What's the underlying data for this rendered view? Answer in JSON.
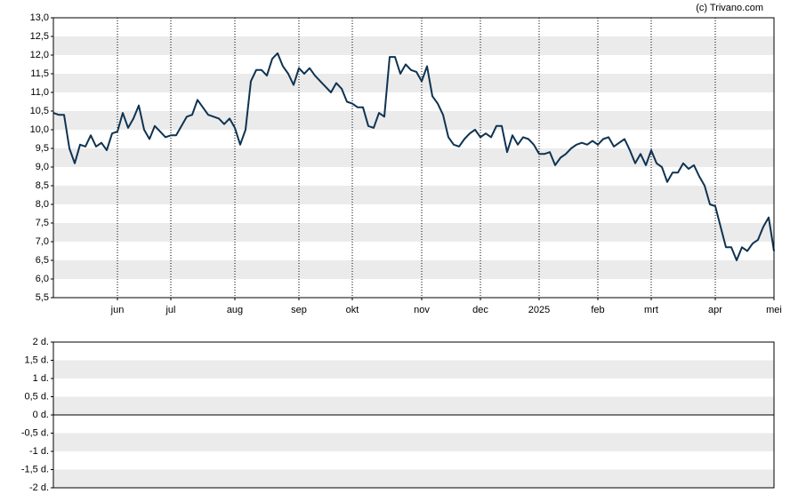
{
  "source": "(c) Trivano.com",
  "chart_data": [
    {
      "type": "line",
      "categories": [
        null,
        null,
        null,
        null,
        null,
        null,
        null,
        null,
        null,
        null,
        null,
        null,
        "jun",
        null,
        null,
        null,
        null,
        null,
        null,
        null,
        null,
        null,
        "jul",
        null,
        null,
        null,
        null,
        null,
        null,
        null,
        null,
        null,
        null,
        null,
        "aug",
        null,
        null,
        null,
        null,
        null,
        null,
        null,
        null,
        null,
        null,
        null,
        "sep",
        null,
        null,
        null,
        null,
        null,
        null,
        null,
        null,
        null,
        "okt",
        null,
        null,
        null,
        null,
        null,
        null,
        null,
        null,
        null,
        null,
        null,
        null,
        "nov",
        null,
        null,
        null,
        null,
        null,
        null,
        null,
        null,
        null,
        null,
        "dec",
        null,
        null,
        null,
        null,
        null,
        null,
        null,
        null,
        null,
        null,
        "2025",
        null,
        null,
        null,
        null,
        null,
        null,
        null,
        null,
        null,
        null,
        "feb",
        null,
        null,
        null,
        null,
        null,
        null,
        null,
        null,
        null,
        "mrt",
        null,
        null,
        null,
        null,
        null,
        null,
        null,
        null,
        null,
        null,
        null,
        "apr",
        null,
        null,
        null,
        null,
        null,
        null,
        null,
        null,
        null,
        null,
        "mei"
      ],
      "series": [
        {
          "color": "#0e3352",
          "values": [
            10.45,
            10.4,
            10.4,
            9.5,
            9.1,
            9.6,
            9.55,
            9.85,
            9.55,
            9.65,
            9.45,
            9.9,
            9.95,
            10.45,
            10.05,
            10.3,
            10.65,
            10.0,
            9.75,
            10.1,
            9.95,
            9.8,
            9.85,
            9.85,
            10.1,
            10.35,
            10.4,
            10.8,
            10.6,
            10.4,
            10.35,
            10.3,
            10.15,
            10.3,
            10.05,
            9.6,
            10.0,
            11.3,
            11.6,
            11.6,
            11.45,
            11.9,
            12.05,
            11.7,
            11.5,
            11.2,
            11.65,
            11.5,
            11.65,
            11.45,
            11.3,
            11.15,
            11.0,
            11.25,
            11.1,
            10.75,
            10.7,
            10.6,
            10.6,
            10.1,
            10.05,
            10.45,
            10.35,
            11.95,
            11.95,
            11.5,
            11.75,
            11.6,
            11.55,
            11.3,
            11.7,
            10.9,
            10.7,
            10.4,
            9.8,
            9.6,
            9.55,
            9.75,
            9.9,
            10.0,
            9.8,
            9.9,
            9.8,
            10.1,
            10.1,
            9.4,
            9.85,
            9.6,
            9.8,
            9.75,
            9.6,
            9.35,
            9.35,
            9.4,
            9.05,
            9.25,
            9.35,
            9.5,
            9.6,
            9.65,
            9.6,
            9.7,
            9.6,
            9.75,
            9.8,
            9.55,
            9.65,
            9.75,
            9.45,
            9.1,
            9.35,
            9.05,
            9.45,
            9.1,
            9.0,
            8.6,
            8.85,
            8.85,
            9.1,
            8.95,
            9.05,
            8.75,
            8.5,
            8.0,
            7.95,
            7.4,
            6.85,
            6.85,
            6.5,
            6.85,
            6.75,
            6.95,
            7.05,
            7.4,
            7.65,
            6.75
          ]
        }
      ],
      "ylim": [
        5.5,
        13
      ],
      "yticks": [
        {
          "value": 13,
          "label": "13,0"
        },
        {
          "value": 12.5,
          "label": "12,5"
        },
        {
          "value": 12,
          "label": "12,0"
        },
        {
          "value": 11.5,
          "label": "11,5"
        },
        {
          "value": 11,
          "label": "11,0"
        },
        {
          "value": 10.5,
          "label": "10,5"
        },
        {
          "value": 10,
          "label": "10,0"
        },
        {
          "value": 9.5,
          "label": "9,5"
        },
        {
          "value": 9,
          "label": "9,0"
        },
        {
          "value": 8.5,
          "label": "8,5"
        },
        {
          "value": 8,
          "label": "8,0"
        },
        {
          "value": 7.5,
          "label": "7,5"
        },
        {
          "value": 7,
          "label": "7,0"
        },
        {
          "value": 6.5,
          "label": "6,5"
        },
        {
          "value": 6,
          "label": "6,0"
        },
        {
          "value": 5.5,
          "label": "5,5"
        }
      ],
      "grid": true
    },
    {
      "type": "bar",
      "ylim": [
        -2,
        2
      ],
      "yticks": [
        {
          "value": 2,
          "label": "2 d."
        },
        {
          "value": 1.5,
          "label": "1,5 d."
        },
        {
          "value": 1,
          "label": "1 d."
        },
        {
          "value": 0.5,
          "label": "0,5 d."
        },
        {
          "value": 0,
          "label": "0 d."
        },
        {
          "value": -0.5,
          "label": "-0,5 d."
        },
        {
          "value": -1,
          "label": "-1 d."
        },
        {
          "value": -1.5,
          "label": "-1,5 d."
        },
        {
          "value": -2,
          "label": "-2 d."
        }
      ],
      "grid": true
    }
  ]
}
